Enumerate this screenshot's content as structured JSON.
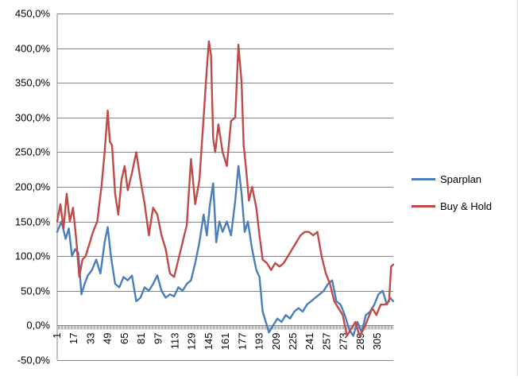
{
  "chart_data": {
    "type": "line",
    "title": "",
    "xlabel": "",
    "ylabel": "",
    "ylim": [
      -0.5,
      4.5
    ],
    "y_ticks": [
      -0.5,
      0,
      0.5,
      1,
      1.5,
      2,
      2.5,
      3,
      3.5,
      4,
      4.5
    ],
    "y_tick_labels": [
      "-50,0%",
      "0,0%",
      "50,0%",
      "100,0%",
      "150,0%",
      "200,0%",
      "250,0%",
      "300,0%",
      "350,0%",
      "400,0%",
      "450,0%"
    ],
    "x_range": [
      1,
      320
    ],
    "x_tick_labels": [
      "1",
      "17",
      "33",
      "49",
      "65",
      "81",
      "97",
      "113",
      "129",
      "145",
      "161",
      "177",
      "193",
      "209",
      "225",
      "241",
      "257",
      "273",
      "289",
      "305"
    ],
    "grid": true,
    "legend_position": "right",
    "series": [
      {
        "name": "Sparplan",
        "color": "#4a7ebb",
        "x": [
          1,
          5,
          9,
          12,
          15,
          18,
          21,
          24,
          27,
          30,
          34,
          38,
          42,
          46,
          49,
          52,
          56,
          60,
          64,
          68,
          72,
          76,
          80,
          84,
          88,
          92,
          96,
          100,
          104,
          108,
          112,
          116,
          120,
          124,
          128,
          132,
          136,
          140,
          143,
          146,
          149,
          152,
          155,
          158,
          162,
          166,
          170,
          173,
          176,
          179,
          182,
          186,
          190,
          193,
          196,
          199,
          202,
          206,
          210,
          214,
          218,
          222,
          226,
          230,
          234,
          238,
          242,
          246,
          250,
          254,
          258,
          262,
          266,
          270,
          274,
          278,
          282,
          286,
          290,
          294,
          298,
          302,
          306,
          310,
          314,
          317,
          320
        ],
        "y": [
          1.35,
          1.5,
          1.25,
          1.4,
          1.0,
          1.1,
          1.05,
          0.45,
          0.6,
          0.72,
          0.8,
          0.95,
          0.75,
          1.2,
          1.42,
          1.0,
          0.6,
          0.55,
          0.7,
          0.65,
          0.72,
          0.35,
          0.4,
          0.55,
          0.5,
          0.6,
          0.72,
          0.5,
          0.4,
          0.45,
          0.42,
          0.55,
          0.5,
          0.6,
          0.65,
          0.9,
          1.2,
          1.6,
          1.3,
          1.75,
          2.05,
          1.2,
          1.5,
          1.35,
          1.5,
          1.3,
          1.8,
          2.3,
          1.9,
          1.35,
          1.5,
          1.1,
          0.8,
          0.7,
          0.2,
          0.05,
          -0.1,
          0.0,
          0.1,
          0.05,
          0.15,
          0.1,
          0.2,
          0.25,
          0.2,
          0.3,
          0.35,
          0.4,
          0.45,
          0.5,
          0.6,
          0.65,
          0.35,
          0.3,
          0.15,
          -0.05,
          -0.15,
          0.05,
          -0.1,
          0.15,
          0.2,
          0.3,
          0.45,
          0.5,
          0.3,
          0.4,
          0.35
        ]
      },
      {
        "name": "Buy & Hold",
        "color": "#be4b48",
        "x": [
          1,
          4,
          7,
          10,
          13,
          16,
          19,
          22,
          25,
          28,
          31,
          35,
          39,
          43,
          46,
          49,
          51,
          53,
          56,
          59,
          62,
          65,
          68,
          72,
          76,
          80,
          84,
          88,
          92,
          96,
          100,
          104,
          108,
          112,
          116,
          120,
          124,
          128,
          132,
          136,
          140,
          143,
          145,
          147,
          149,
          151,
          154,
          158,
          162,
          166,
          170,
          173,
          176,
          178,
          180,
          183,
          186,
          190,
          193,
          196,
          200,
          204,
          208,
          212,
          216,
          220,
          224,
          228,
          232,
          236,
          240,
          244,
          248,
          252,
          256,
          260,
          264,
          268,
          272,
          276,
          280,
          284,
          288,
          292,
          296,
          300,
          304,
          308,
          312,
          316,
          318,
          320
        ],
        "y": [
          1.5,
          1.75,
          1.4,
          1.9,
          1.5,
          1.7,
          1.25,
          0.7,
          0.95,
          1.0,
          1.15,
          1.35,
          1.5,
          2.0,
          2.5,
          3.1,
          2.65,
          2.6,
          1.9,
          1.6,
          2.1,
          2.3,
          1.95,
          2.2,
          2.5,
          2.1,
          1.75,
          1.3,
          1.7,
          1.6,
          1.3,
          1.1,
          0.75,
          0.7,
          0.95,
          1.2,
          1.45,
          2.4,
          1.75,
          2.1,
          3.0,
          3.7,
          4.1,
          3.9,
          2.7,
          2.5,
          2.9,
          2.5,
          2.3,
          2.95,
          3.0,
          4.05,
          3.5,
          2.6,
          2.3,
          1.8,
          2.0,
          1.7,
          1.3,
          0.95,
          0.9,
          0.8,
          0.9,
          0.85,
          0.9,
          1.0,
          1.1,
          1.2,
          1.3,
          1.35,
          1.35,
          1.3,
          1.35,
          1.0,
          0.75,
          0.6,
          0.35,
          0.25,
          0.15,
          -0.15,
          -0.05,
          0.05,
          -0.15,
          -0.05,
          0.1,
          0.25,
          0.15,
          0.3,
          0.3,
          0.35,
          0.85,
          0.88
        ]
      }
    ]
  }
}
